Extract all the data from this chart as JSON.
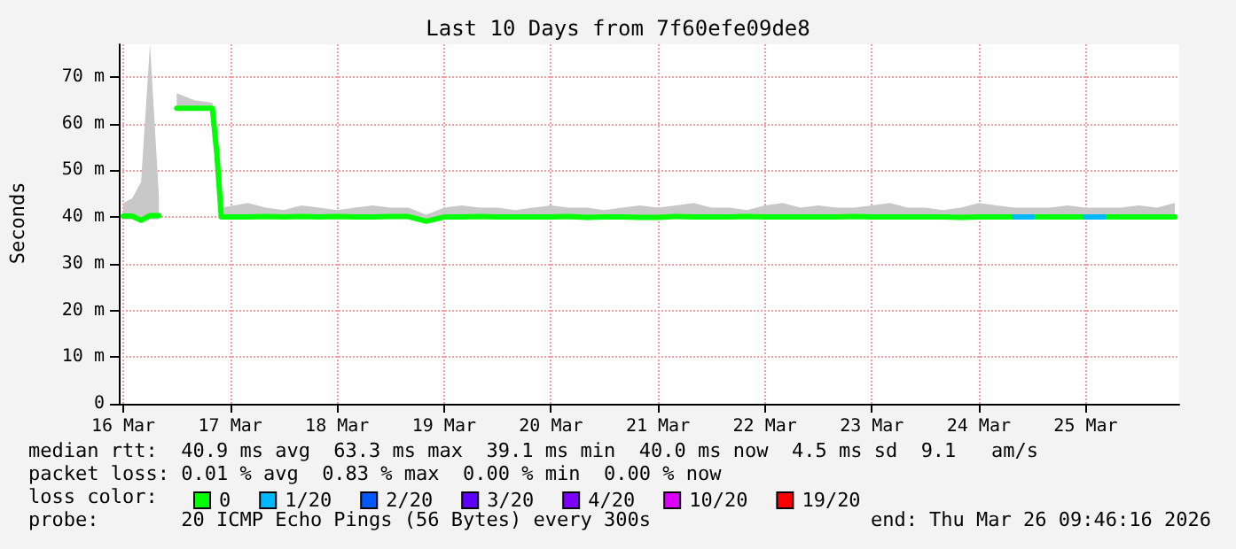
{
  "chart_data": {
    "type": "line",
    "title": "Last 10 Days from 7f60efe09de8",
    "ylabel": "Seconds",
    "legend_title": "loss color:",
    "legend": "bottom",
    "grid": true,
    "marker": "none",
    "line_style": "solid",
    "xlim": [
      "2026-03-15T23:00",
      "2026-03-25T21:00"
    ],
    "xticks": [
      {
        "value": "2026-03-16",
        "label": "16 Mar"
      },
      {
        "value": "2026-03-17",
        "label": "17 Mar"
      },
      {
        "value": "2026-03-18",
        "label": "18 Mar"
      },
      {
        "value": "2026-03-19",
        "label": "19 Mar"
      },
      {
        "value": "2026-03-20",
        "label": "20 Mar"
      },
      {
        "value": "2026-03-21",
        "label": "21 Mar"
      },
      {
        "value": "2026-03-22",
        "label": "22 Mar"
      },
      {
        "value": "2026-03-23",
        "label": "23 Mar"
      },
      {
        "value": "2026-03-24",
        "label": "24 Mar"
      },
      {
        "value": "2026-03-25",
        "label": "25 Mar"
      }
    ],
    "ylim": [
      0,
      77
    ],
    "yticks": [
      0,
      {
        "value": 10,
        "label": "10 m"
      },
      {
        "value": 20,
        "label": "20 m"
      },
      {
        "value": 30,
        "label": "30 m"
      },
      {
        "value": 40,
        "label": "40 m"
      },
      {
        "value": 50,
        "label": "50 m"
      },
      {
        "value": 60,
        "label": "60 m"
      },
      {
        "value": 70,
        "label": "70 m"
      }
    ],
    "x": [
      "2026-03-16T00:00",
      "2026-03-16T02:00",
      "2026-03-16T04:00",
      "2026-03-16T06:00",
      "2026-03-16T08:00",
      "2026-03-16T10:00",
      "2026-03-16T12:00",
      "2026-03-16T16:00",
      "2026-03-16T20:00",
      "2026-03-16T21:00",
      "2026-03-16T22:00",
      "2026-03-17T04:00",
      "2026-03-17T08:00",
      "2026-03-17T12:00",
      "2026-03-17T16:00",
      "2026-03-17T20:00",
      "2026-03-18T00:00",
      "2026-03-18T04:00",
      "2026-03-18T08:00",
      "2026-03-18T12:00",
      "2026-03-18T16:00",
      "2026-03-18T20:00",
      "2026-03-19T00:00",
      "2026-03-19T04:00",
      "2026-03-19T08:00",
      "2026-03-19T12:00",
      "2026-03-19T16:00",
      "2026-03-19T20:00",
      "2026-03-20T00:00",
      "2026-03-20T04:00",
      "2026-03-20T08:00",
      "2026-03-20T12:00",
      "2026-03-20T16:00",
      "2026-03-20T20:00",
      "2026-03-21T00:00",
      "2026-03-21T04:00",
      "2026-03-21T08:00",
      "2026-03-21T12:00",
      "2026-03-21T16:00",
      "2026-03-21T20:00",
      "2026-03-22T00:00",
      "2026-03-22T04:00",
      "2026-03-22T08:00",
      "2026-03-22T12:00",
      "2026-03-22T16:00",
      "2026-03-22T20:00",
      "2026-03-23T00:00",
      "2026-03-23T04:00",
      "2026-03-23T08:00",
      "2026-03-23T12:00",
      "2026-03-23T16:00",
      "2026-03-23T20:00",
      "2026-03-24T00:00",
      "2026-03-24T04:00",
      "2026-03-24T08:00",
      "2026-03-24T12:00",
      "2026-03-24T16:00",
      "2026-03-24T20:00",
      "2026-03-25T00:00",
      "2026-03-25T04:00",
      "2026-03-25T08:00",
      "2026-03-25T12:00",
      "2026-03-25T16:00",
      "2026-03-25T20:00"
    ],
    "series": [
      {
        "name": "0",
        "color": "#00ff00",
        "values": [
          40.2,
          40.2,
          39.3,
          40.3,
          40.3,
          null,
          63.3,
          63.3,
          63.3,
          53.5,
          40.0,
          40.0,
          40.1,
          40.0,
          40.1,
          40.0,
          40.1,
          40.0,
          40.0,
          40.1,
          40.1,
          39.1,
          40.0,
          40.0,
          40.1,
          40.0,
          40.0,
          40.0,
          40.0,
          40.1,
          39.9,
          40.0,
          40.0,
          39.9,
          39.9,
          40.1,
          40.0,
          40.0,
          40.0,
          40.1,
          40.0,
          40.0,
          40.0,
          40.0,
          40.0,
          40.1,
          40.0,
          40.0,
          40.0,
          40.0,
          40.0,
          39.9,
          40.0,
          40.0,
          40.0,
          40.0,
          40.0,
          40.0,
          40.0,
          40.0,
          40.0,
          40.0,
          40.0,
          40.0
        ],
        "lower": [
          39.5,
          39.5,
          39.0,
          39.5,
          39.5,
          null,
          63.0,
          63.0,
          63.0,
          53.0,
          39.6,
          39.6,
          39.6,
          39.6,
          39.6,
          39.6,
          39.6,
          39.6,
          39.6,
          39.6,
          39.6,
          38.8,
          39.6,
          39.6,
          39.6,
          39.6,
          39.6,
          39.6,
          39.6,
          39.6,
          39.6,
          39.6,
          39.6,
          39.6,
          39.6,
          39.6,
          39.6,
          39.6,
          39.6,
          39.6,
          39.6,
          39.6,
          39.6,
          39.6,
          39.6,
          39.6,
          39.6,
          39.6,
          39.6,
          39.6,
          39.6,
          39.6,
          39.6,
          39.6,
          39.6,
          39.6,
          39.6,
          39.6,
          39.6,
          39.6,
          39.6,
          39.6,
          39.6,
          39.6
        ],
        "upper": [
          43.0,
          44.0,
          47.5,
          77.0,
          44.5,
          null,
          66.5,
          65.0,
          64.5,
          54.0,
          42.0,
          43.0,
          42.0,
          41.5,
          42.5,
          42.0,
          41.5,
          42.0,
          42.5,
          42.0,
          42.0,
          40.5,
          42.0,
          42.5,
          42.0,
          42.0,
          41.5,
          42.0,
          42.5,
          42.0,
          42.0,
          41.5,
          42.0,
          42.5,
          42.0,
          42.5,
          43.0,
          42.0,
          42.0,
          41.5,
          42.5,
          43.0,
          42.0,
          42.5,
          42.0,
          42.0,
          42.5,
          43.0,
          42.0,
          42.0,
          41.5,
          42.0,
          43.0,
          42.5,
          42.0,
          42.0,
          42.0,
          42.5,
          42.0,
          42.0,
          42.0,
          42.5,
          42.0,
          43.0
        ]
      },
      {
        "name": "1/20",
        "color": "#00b8ff",
        "values": [
          null,
          null,
          null,
          null,
          null,
          null,
          null,
          null,
          null,
          null,
          null,
          null,
          null,
          null,
          null,
          null,
          null,
          null,
          null,
          null,
          null,
          null,
          null,
          null,
          null,
          null,
          null,
          null,
          null,
          null,
          null,
          null,
          null,
          null,
          null,
          null,
          null,
          null,
          null,
          null,
          null,
          null,
          null,
          null,
          null,
          null,
          null,
          null,
          null,
          null,
          null,
          null,
          null,
          null,
          40.0,
          40.0,
          null,
          null,
          40.0,
          40.0,
          null,
          null,
          null,
          null
        ]
      },
      {
        "name": "2/20",
        "color": "#0059ff",
        "values": [
          null,
          null,
          null,
          null,
          null,
          null,
          null,
          null,
          null,
          null,
          null,
          null,
          null,
          null,
          null,
          null,
          null,
          null,
          null,
          null,
          null,
          null,
          null,
          null,
          null,
          null,
          null,
          null,
          null,
          null,
          null,
          null,
          null,
          null,
          null,
          null,
          null,
          null,
          null,
          null,
          null,
          null,
          null,
          null,
          null,
          null,
          null,
          null,
          null,
          null,
          null,
          null,
          null,
          null,
          null,
          null,
          null,
          null,
          null,
          null,
          null,
          null,
          null,
          null
        ]
      },
      {
        "name": "3/20",
        "color": "#5e00ff",
        "values": [
          null,
          null,
          null,
          null,
          null,
          null,
          null,
          null,
          null,
          null,
          null,
          null,
          null,
          null,
          null,
          null,
          null,
          null,
          null,
          null,
          null,
          null,
          null,
          null,
          null,
          null,
          null,
          null,
          null,
          null,
          null,
          null,
          null,
          null,
          null,
          null,
          null,
          null,
          null,
          null,
          null,
          null,
          null,
          null,
          null,
          null,
          null,
          null,
          null,
          null,
          null,
          null,
          null,
          null,
          null,
          null,
          null,
          null,
          null,
          null,
          null,
          null,
          null,
          null
        ]
      },
      {
        "name": "4/20",
        "color": "#7e00ff",
        "values": [
          null,
          null,
          null,
          null,
          null,
          null,
          null,
          null,
          null,
          null,
          null,
          null,
          null,
          null,
          null,
          null,
          null,
          null,
          null,
          null,
          null,
          null,
          null,
          null,
          null,
          null,
          null,
          null,
          null,
          null,
          null,
          null,
          null,
          null,
          null,
          null,
          null,
          null,
          null,
          null,
          null,
          null,
          null,
          null,
          null,
          null,
          null,
          null,
          null,
          null,
          null,
          null,
          null,
          null,
          null,
          null,
          null,
          null,
          null,
          null,
          null,
          null,
          null,
          null
        ]
      },
      {
        "name": "10/20",
        "color": "#dd00ff",
        "values": [
          null,
          null,
          null,
          null,
          null,
          null,
          null,
          null,
          null,
          null,
          null,
          null,
          null,
          null,
          null,
          null,
          null,
          null,
          null,
          null,
          null,
          null,
          null,
          null,
          null,
          null,
          null,
          null,
          null,
          null,
          null,
          null,
          null,
          null,
          null,
          null,
          null,
          null,
          null,
          null,
          null,
          null,
          null,
          null,
          null,
          null,
          null,
          null,
          null,
          null,
          null,
          null,
          null,
          null,
          null,
          null,
          null,
          null,
          null,
          null,
          null,
          null,
          null,
          null
        ]
      },
      {
        "name": "19/20",
        "color": "#ff0000",
        "values": [
          null,
          null,
          null,
          null,
          null,
          null,
          null,
          null,
          null,
          null,
          null,
          null,
          null,
          null,
          null,
          null,
          null,
          null,
          null,
          null,
          null,
          null,
          null,
          null,
          null,
          null,
          null,
          null,
          null,
          null,
          null,
          null,
          null,
          null,
          null,
          null,
          null,
          null,
          null,
          null,
          null,
          null,
          null,
          null,
          null,
          null,
          null,
          null,
          null,
          null,
          null,
          null,
          null,
          null,
          null,
          null,
          null,
          null,
          null,
          null,
          null,
          null,
          null,
          null
        ]
      }
    ],
    "annotations": [
      "median rtt:  40.9 ms avg  63.3 ms max  39.1 ms min  40.0 ms now  4.5 ms sd  9.1   am/s",
      "packet loss: 0.01 % avg  0.83 % max  0.00 % min  0.00 % now",
      "probe:       20 ICMP Echo Pings (56 Bytes) every 300s",
      "end: Thu Mar 26 09:46:16 2026"
    ]
  }
}
